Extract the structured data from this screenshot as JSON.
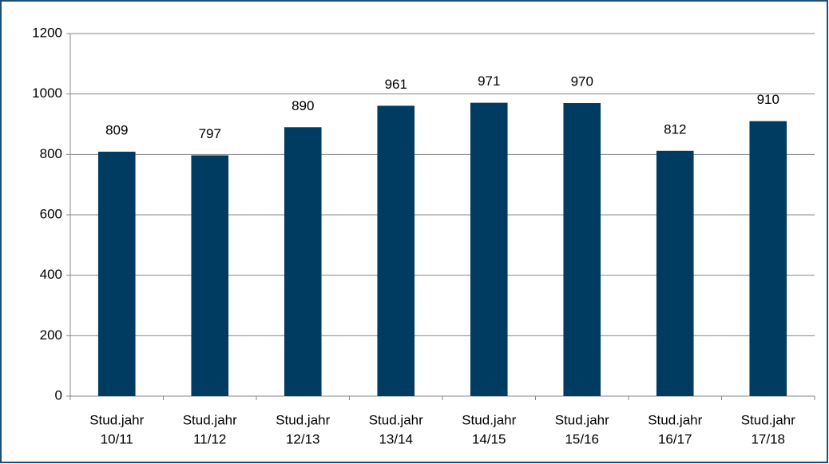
{
  "chart_data": {
    "type": "bar",
    "categories": [
      [
        "Stud.jahr",
        "10/11"
      ],
      [
        "Stud.jahr",
        "11/12"
      ],
      [
        "Stud.jahr",
        "12/13"
      ],
      [
        "Stud.jahr",
        "13/14"
      ],
      [
        "Stud.jahr",
        "14/15"
      ],
      [
        "Stud.jahr",
        "15/16"
      ],
      [
        "Stud.jahr",
        "16/17"
      ],
      [
        "Stud.jahr",
        "17/18"
      ]
    ],
    "values": [
      809,
      797,
      890,
      961,
      971,
      970,
      812,
      910
    ],
    "color": "#003b62",
    "ylim": [
      0,
      1200
    ],
    "yticks": [
      0,
      200,
      400,
      600,
      800,
      1000,
      1200
    ],
    "grid": true
  }
}
